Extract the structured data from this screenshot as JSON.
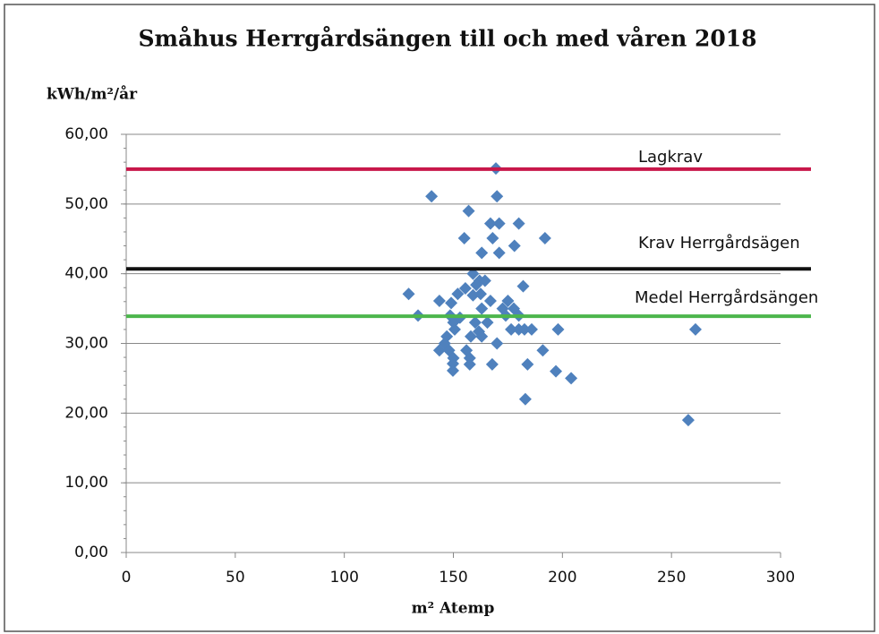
{
  "chart_data": {
    "type": "scatter",
    "title": "Småhus Herrgårdsängen till och med våren 2018",
    "y_label": "kWh/m²/år",
    "x_label": "m² Atemp",
    "xlim": [
      0,
      300
    ],
    "xticks": [
      0,
      50,
      100,
      150,
      200,
      250,
      300
    ],
    "ylim": [
      0,
      60
    ],
    "yticks": [
      {
        "value": 0,
        "label": "0,00"
      },
      {
        "value": 10,
        "label": "10,00"
      },
      {
        "value": 20,
        "label": "20,00"
      },
      {
        "value": 30,
        "label": "30,00"
      },
      {
        "value": 40,
        "label": "40,00"
      },
      {
        "value": 50,
        "label": "50,00"
      },
      {
        "value": 60,
        "label": "60,00"
      }
    ],
    "grid": true,
    "color": "#4f81bd",
    "x": [
      169.5,
      140,
      170,
      157,
      167,
      171,
      180,
      155,
      168,
      192,
      178,
      163,
      171,
      159,
      162,
      164.5,
      160.5,
      182,
      155.5,
      152,
      129.5,
      159,
      162.5,
      143.6,
      167,
      175,
      149,
      163,
      172.6,
      177.7,
      174,
      133.8,
      148.5,
      153,
      180,
      165.6,
      150,
      160,
      176.5,
      180,
      182.6,
      185.9,
      198,
      261,
      147,
      158,
      163,
      150.6,
      161.7,
      146,
      170,
      143.6,
      148,
      156,
      191,
      150,
      157.5,
      149.8,
      157.5,
      167.8,
      184,
      197,
      149.8,
      204,
      183,
      257.7
    ],
    "values": [
      55.1,
      51.1,
      51.1,
      49,
      47.2,
      47.2,
      47.2,
      45.1,
      45.1,
      45.1,
      44,
      43,
      43,
      40,
      39,
      39,
      38.4,
      38.2,
      37.9,
      37.1,
      37.1,
      36.9,
      37.1,
      36.1,
      36.1,
      36.1,
      35.8,
      35,
      35,
      35,
      34,
      34,
      34,
      33.7,
      34,
      33,
      33,
      33,
      32,
      32,
      32,
      32,
      32,
      32,
      31,
      31,
      31,
      32,
      31.7,
      30,
      30,
      29,
      29,
      29,
      29,
      27.9,
      27.9,
      27.1,
      27,
      27,
      27,
      26,
      26.1,
      25,
      22,
      19
    ],
    "reference_lines": [
      {
        "label": "Lagkrav",
        "value": 55,
        "color": "#c8174a"
      },
      {
        "label": "Krav Herrgårdsägen",
        "value": 40.7,
        "color": "#111111"
      },
      {
        "label": "Medel Herrgårdsängen",
        "value": 33.9,
        "color": "#4cb64c"
      }
    ]
  }
}
